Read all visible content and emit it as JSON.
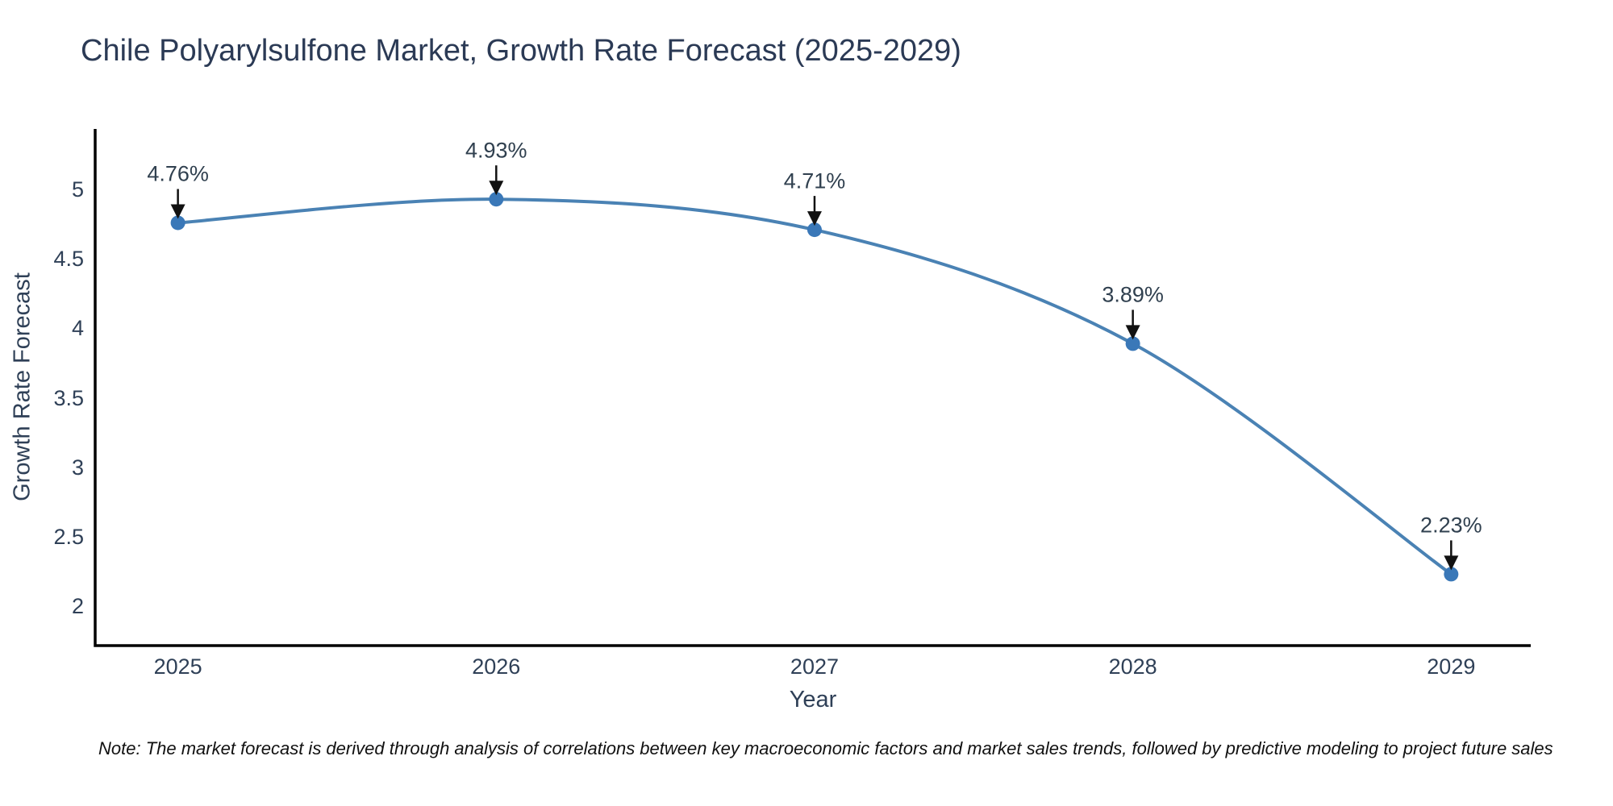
{
  "chart_data": {
    "type": "line",
    "title": "Chile Polyarylsulfone Market, Growth Rate Forecast (2025-2029)",
    "xlabel": "Year",
    "ylabel": "Growth Rate Forecast",
    "x": [
      2025,
      2026,
      2027,
      2028,
      2029
    ],
    "series": [
      {
        "name": "Growth Rate Forecast",
        "values": [
          4.76,
          4.93,
          4.71,
          3.89,
          2.23
        ]
      }
    ],
    "point_labels": [
      "4.76%",
      "4.93%",
      "4.71%",
      "3.89%",
      "2.23%"
    ],
    "yticks": [
      2,
      2.5,
      3,
      3.5,
      4,
      4.5,
      5
    ],
    "ylim": [
      1.716,
      5.436
    ],
    "xlim": [
      2024.74,
      2029.25
    ],
    "grid": false,
    "legend": "none",
    "line_color": "#4a82b4",
    "marker_color": "#3a78b8",
    "axis_color": "#000000",
    "arrow_color": "#111111",
    "line_shape": "spline"
  },
  "note": {
    "text": "Note: The market forecast is derived through analysis of correlations between key macroeconomic factors and market sales trends, followed by predictive modeling to project future sales"
  }
}
